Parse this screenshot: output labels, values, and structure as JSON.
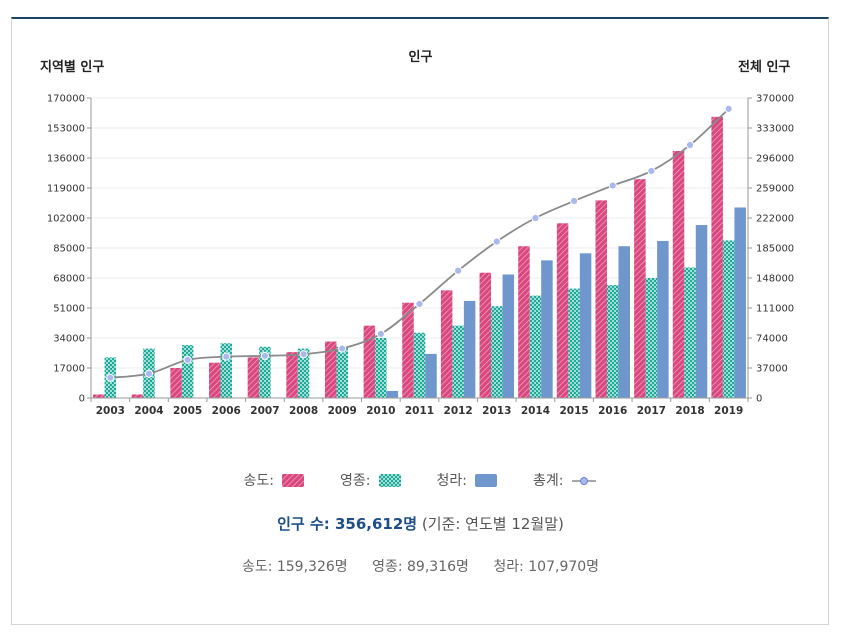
{
  "chart_data": {
    "type": "bar",
    "title": "인구",
    "ylabel_left": "지역별 인구",
    "ylabel_right": "전체 인구",
    "categories": [
      "2003",
      "2004",
      "2005",
      "2006",
      "2007",
      "2008",
      "2009",
      "2010",
      "2011",
      "2012",
      "2013",
      "2014",
      "2015",
      "2016",
      "2017",
      "2018",
      "2019"
    ],
    "left_axis": {
      "min": 0,
      "max": 170000,
      "ticks": [
        0,
        17000,
        34000,
        51000,
        68000,
        85000,
        102000,
        119000,
        136000,
        153000,
        170000
      ]
    },
    "right_axis": {
      "min": 0,
      "max": 370000,
      "ticks": [
        0,
        37000,
        74000,
        111000,
        148000,
        185000,
        222000,
        259000,
        296000,
        333000,
        370000
      ]
    },
    "series": [
      {
        "name": "송도",
        "axis": "left",
        "color": "#d9477f",
        "values": [
          2000,
          2000,
          17000,
          20000,
          23000,
          26000,
          32000,
          41000,
          54000,
          61000,
          71000,
          86000,
          99000,
          112000,
          124000,
          140000,
          159326
        ]
      },
      {
        "name": "영종",
        "axis": "left",
        "color": "#22a898",
        "values": [
          23000,
          28000,
          30000,
          31000,
          29000,
          28000,
          29000,
          34000,
          37000,
          41000,
          52000,
          58000,
          62000,
          64000,
          68000,
          74000,
          89316
        ]
      },
      {
        "name": "청라",
        "axis": "left",
        "color": "#6f97cd",
        "values": [
          0,
          0,
          0,
          0,
          0,
          0,
          0,
          4000,
          25000,
          55000,
          70000,
          78000,
          82000,
          86000,
          89000,
          98000,
          107970
        ]
      },
      {
        "name": "총계",
        "axis": "right",
        "type": "line",
        "color": "#8a8a8a",
        "values": [
          25000,
          30000,
          47000,
          51000,
          52000,
          54000,
          61000,
          79000,
          116000,
          157000,
          193000,
          222000,
          243000,
          262000,
          280000,
          312000,
          356612
        ]
      }
    ]
  },
  "legend": {
    "items": [
      {
        "label": "송도:",
        "swatch": "songdo"
      },
      {
        "label": "영종:",
        "swatch": "yeongjong"
      },
      {
        "label": "청라:",
        "swatch": "cheongna"
      },
      {
        "label": "총계:",
        "swatch": "total"
      }
    ]
  },
  "summary": {
    "population_label": "인구 수: 356,612명",
    "basis": "(기준: 연도별 12월말)",
    "songdo": "송도: 159,326명",
    "yeongjong": "영종: 89,316명",
    "cheongna": "청라: 107,970명"
  },
  "colors": {
    "header_bar": "#1d4464",
    "accent_text": "#1d4e89"
  }
}
